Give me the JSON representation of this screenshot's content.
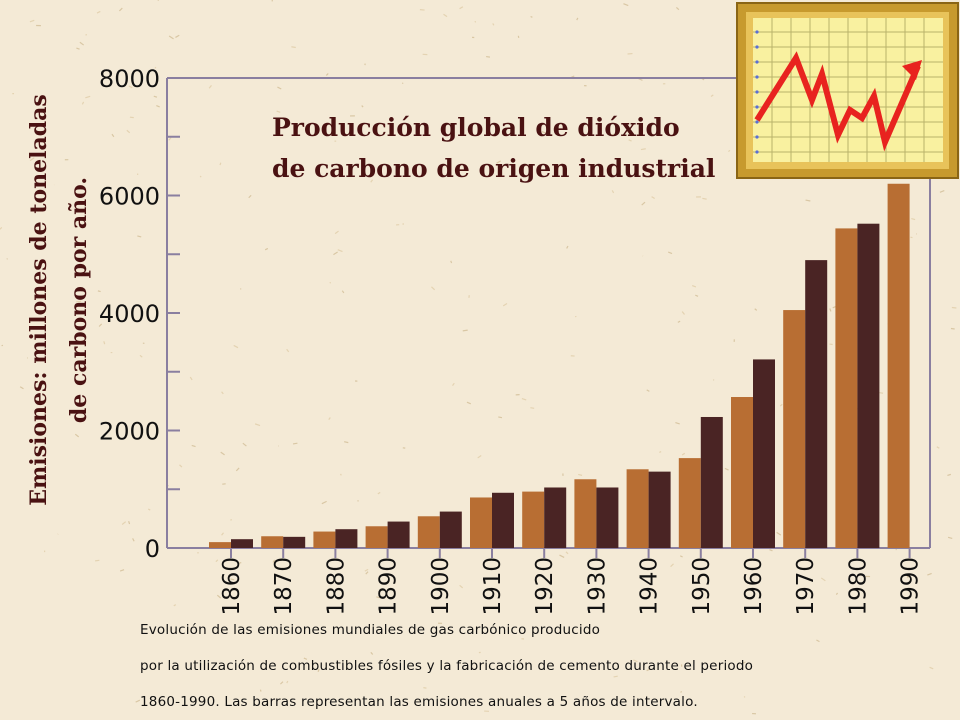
{
  "chart_data": {
    "type": "bar",
    "title_lines": [
      "Producción global de dióxido",
      "de carbono de origen industrial"
    ],
    "ylabel_lines": [
      "Emisiones: millones de toneladas",
      "de carbono por año."
    ],
    "xlabel": "",
    "ylim": [
      0,
      8000
    ],
    "yticks": [
      "0",
      "2000",
      "4000",
      "6000",
      "8000"
    ],
    "categories": [
      "1860",
      "1870",
      "1880",
      "1890",
      "1900",
      "1910",
      "1920",
      "1930",
      "1940",
      "1950",
      "1960",
      "1970",
      "1980",
      "1990"
    ],
    "series": [
      {
        "values": [
          100,
          200,
          280,
          370,
          540,
          860,
          960,
          1170,
          1340,
          1530,
          2570,
          4050,
          5440,
          6200
        ]
      },
      {
        "values": [
          150,
          190,
          320,
          450,
          620,
          940,
          1030,
          1030,
          1300,
          2230,
          3210,
          4900,
          5520,
          null
        ]
      }
    ],
    "colors": [
      "#b86e33",
      "#4a2424"
    ],
    "grid": false,
    "legend": "none"
  },
  "caption": {
    "line1": "Evolución de las emisiones mundiales de gas carbónico producido",
    "line2": "por la utilización de combustibles fósiles y la fabricación de cemento durante el periodo",
    "line3": "1860-1990. Las barras representan las emisiones anuales a 5 años de intervalo."
  },
  "icon": {
    "name": "line-chart-icon",
    "frame_color": "#c79a2e",
    "line_color": "#e8231f",
    "bg_color": "#f9f1a0"
  },
  "colors": {
    "background": "#f4ead6",
    "axis": "#8a7fa0",
    "text": "#4a1212"
  }
}
